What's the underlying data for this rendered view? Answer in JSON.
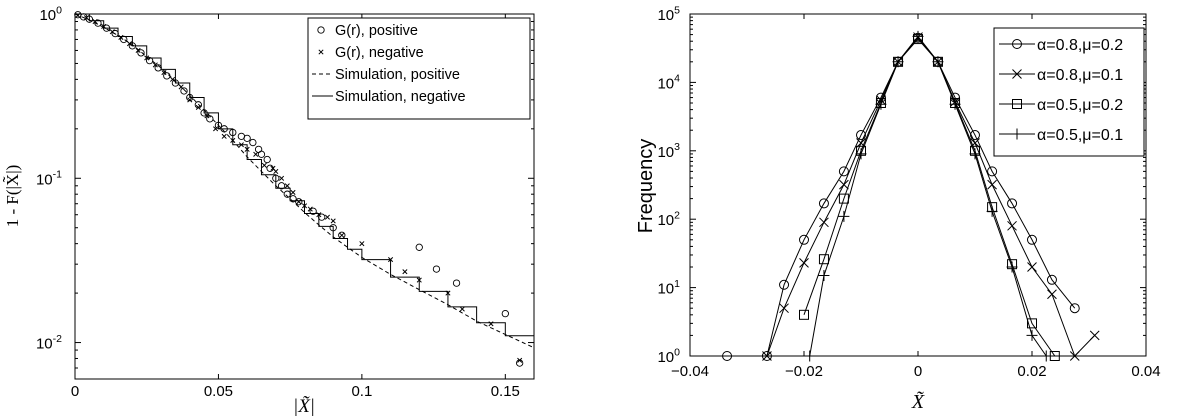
{
  "chart_data": [
    {
      "type": "scatter",
      "xlabel": "|X̃|",
      "ylabel": "1 - F(|X̃|)",
      "xlim": [
        0,
        0.16
      ],
      "ylim": [
        0.006,
        1
      ],
      "yscale": "log",
      "grid": false,
      "legend_position": "top-right",
      "xticks": [
        "0",
        "0.05",
        "0.1",
        "0.15"
      ],
      "yticks": [
        {
          "value": 1,
          "label": "10",
          "exp": "0"
        },
        {
          "value": 0.1,
          "label": "10",
          "exp": "-1"
        },
        {
          "value": 0.01,
          "label": "10",
          "exp": "-2"
        }
      ],
      "series": [
        {
          "name": "G(r), positive",
          "marker": "circle",
          "style": "markers",
          "points": [
            [
              0.001,
              0.99
            ],
            [
              0.003,
              0.96
            ],
            [
              0.005,
              0.93
            ],
            [
              0.008,
              0.88
            ],
            [
              0.011,
              0.82
            ],
            [
              0.014,
              0.76
            ],
            [
              0.017,
              0.7
            ],
            [
              0.02,
              0.64
            ],
            [
              0.023,
              0.58
            ],
            [
              0.026,
              0.52
            ],
            [
              0.029,
              0.47
            ],
            [
              0.032,
              0.42
            ],
            [
              0.035,
              0.38
            ],
            [
              0.038,
              0.34
            ],
            [
              0.04,
              0.31
            ],
            [
              0.043,
              0.28
            ],
            [
              0.045,
              0.25
            ],
            [
              0.047,
              0.23
            ],
            [
              0.05,
              0.21
            ],
            [
              0.052,
              0.2
            ],
            [
              0.055,
              0.19
            ],
            [
              0.058,
              0.18
            ],
            [
              0.06,
              0.175
            ],
            [
              0.062,
              0.165
            ],
            [
              0.064,
              0.15
            ],
            [
              0.065,
              0.14
            ],
            [
              0.067,
              0.13
            ],
            [
              0.068,
              0.115
            ],
            [
              0.07,
              0.1
            ],
            [
              0.072,
              0.09
            ],
            [
              0.074,
              0.08
            ],
            [
              0.076,
              0.075
            ],
            [
              0.078,
              0.072
            ],
            [
              0.083,
              0.063
            ],
            [
              0.086,
              0.058
            ],
            [
              0.09,
              0.05
            ],
            [
              0.093,
              0.045
            ],
            [
              0.12,
              0.038
            ],
            [
              0.126,
              0.028
            ],
            [
              0.133,
              0.023
            ],
            [
              0.15,
              0.015
            ],
            [
              0.155,
              0.0075
            ]
          ]
        },
        {
          "name": "G(r), negative",
          "marker": "x",
          "style": "markers",
          "points": [
            [
              0.001,
              0.98
            ],
            [
              0.004,
              0.95
            ],
            [
              0.007,
              0.9
            ],
            [
              0.01,
              0.84
            ],
            [
              0.013,
              0.78
            ],
            [
              0.016,
              0.72
            ],
            [
              0.019,
              0.66
            ],
            [
              0.022,
              0.6
            ],
            [
              0.025,
              0.54
            ],
            [
              0.028,
              0.49
            ],
            [
              0.031,
              0.44
            ],
            [
              0.034,
              0.4
            ],
            [
              0.037,
              0.36
            ],
            [
              0.04,
              0.3
            ],
            [
              0.043,
              0.27
            ],
            [
              0.046,
              0.24
            ],
            [
              0.049,
              0.2
            ],
            [
              0.052,
              0.18
            ],
            [
              0.055,
              0.17
            ],
            [
              0.058,
              0.16
            ],
            [
              0.06,
              0.15
            ],
            [
              0.063,
              0.14
            ],
            [
              0.066,
              0.12
            ],
            [
              0.069,
              0.115
            ],
            [
              0.07,
              0.11
            ],
            [
              0.072,
              0.1
            ],
            [
              0.074,
              0.09
            ],
            [
              0.076,
              0.082
            ],
            [
              0.078,
              0.072
            ],
            [
              0.08,
              0.068
            ],
            [
              0.082,
              0.065
            ],
            [
              0.085,
              0.06
            ],
            [
              0.088,
              0.058
            ],
            [
              0.09,
              0.055
            ],
            [
              0.093,
              0.045
            ],
            [
              0.1,
              0.04
            ],
            [
              0.11,
              0.032
            ],
            [
              0.115,
              0.027
            ],
            [
              0.12,
              0.024
            ],
            [
              0.13,
              0.02
            ],
            [
              0.135,
              0.016
            ],
            [
              0.145,
              0.013
            ],
            [
              0.155,
              0.0078
            ]
          ]
        },
        {
          "name": "Simulation, positive",
          "style": "dashed",
          "points": [
            [
              0,
              1
            ],
            [
              0.005,
              0.92
            ],
            [
              0.01,
              0.83
            ],
            [
              0.015,
              0.74
            ],
            [
              0.02,
              0.65
            ],
            [
              0.025,
              0.55
            ],
            [
              0.03,
              0.47
            ],
            [
              0.035,
              0.39
            ],
            [
              0.04,
              0.32
            ],
            [
              0.045,
              0.26
            ],
            [
              0.05,
              0.21
            ],
            [
              0.055,
              0.17
            ],
            [
              0.06,
              0.135
            ],
            [
              0.065,
              0.11
            ],
            [
              0.07,
              0.09
            ],
            [
              0.075,
              0.075
            ],
            [
              0.08,
              0.062
            ],
            [
              0.085,
              0.052
            ],
            [
              0.09,
              0.044
            ],
            [
              0.095,
              0.038
            ],
            [
              0.1,
              0.033
            ],
            [
              0.11,
              0.026
            ],
            [
              0.12,
              0.021
            ],
            [
              0.13,
              0.017
            ],
            [
              0.14,
              0.0135
            ],
            [
              0.15,
              0.0112
            ],
            [
              0.16,
              0.0093
            ]
          ]
        },
        {
          "name": "Simulation, negative",
          "style": "solid-step",
          "points": [
            [
              0,
              1
            ],
            [
              0.005,
              0.91
            ],
            [
              0.01,
              0.82
            ],
            [
              0.015,
              0.73
            ],
            [
              0.02,
              0.64
            ],
            [
              0.025,
              0.54
            ],
            [
              0.03,
              0.46
            ],
            [
              0.035,
              0.38
            ],
            [
              0.04,
              0.31
            ],
            [
              0.045,
              0.25
            ],
            [
              0.05,
              0.2
            ],
            [
              0.055,
              0.16
            ],
            [
              0.06,
              0.13
            ],
            [
              0.065,
              0.105
            ],
            [
              0.07,
              0.087
            ],
            [
              0.075,
              0.073
            ],
            [
              0.08,
              0.061
            ],
            [
              0.085,
              0.051
            ],
            [
              0.09,
              0.043
            ],
            [
              0.095,
              0.037
            ],
            [
              0.1,
              0.032
            ],
            [
              0.11,
              0.025
            ],
            [
              0.12,
              0.0205
            ],
            [
              0.13,
              0.0165
            ],
            [
              0.14,
              0.0132
            ],
            [
              0.15,
              0.011
            ],
            [
              0.16,
              0.0092
            ]
          ]
        }
      ]
    },
    {
      "type": "line",
      "xlabel": "X̃",
      "ylabel": "Frequency",
      "xlim": [
        -0.04,
        0.04
      ],
      "ylim": [
        1,
        100000
      ],
      "yscale": "log",
      "grid": false,
      "legend_position": "top-right",
      "xticks": [
        "−0.04",
        "−0.02",
        "0",
        "0.02",
        "0.04"
      ],
      "yticks": [
        {
          "value": 1,
          "label": "10",
          "exp": "0"
        },
        {
          "value": 10,
          "label": "10",
          "exp": "1"
        },
        {
          "value": 100,
          "label": "10",
          "exp": "2"
        },
        {
          "value": 1000,
          "label": "10",
          "exp": "3"
        },
        {
          "value": 10000,
          "label": "10",
          "exp": "4"
        },
        {
          "value": 100000,
          "label": "10",
          "exp": "5"
        }
      ],
      "series": [
        {
          "name": "α=0.8,μ=0.2",
          "marker": "circle",
          "points": [
            [
              -0.0335,
              1
            ],
            [
              -0.0265,
              1
            ],
            [
              -0.0235,
              11
            ],
            [
              -0.02,
              50
            ],
            [
              -0.0165,
              170
            ],
            [
              -0.013,
              500
            ],
            [
              -0.01,
              1700
            ],
            [
              -0.0065,
              6000
            ],
            [
              -0.0035,
              20000
            ],
            [
              0,
              45000
            ],
            [
              0.0035,
              20000
            ],
            [
              0.0065,
              6000
            ],
            [
              0.01,
              1700
            ],
            [
              0.013,
              500
            ],
            [
              0.0165,
              170
            ],
            [
              0.02,
              50
            ],
            [
              0.0235,
              13
            ],
            [
              0.0275,
              5
            ]
          ]
        },
        {
          "name": "α=0.8,μ=0.1",
          "marker": "x",
          "points": [
            [
              -0.0265,
              1
            ],
            [
              -0.0235,
              5
            ],
            [
              -0.02,
              23
            ],
            [
              -0.0165,
              90
            ],
            [
              -0.013,
              320
            ],
            [
              -0.01,
              1300
            ],
            [
              -0.0065,
              5500
            ],
            [
              -0.0035,
              20000
            ],
            [
              0,
              46000
            ],
            [
              0.0035,
              20000
            ],
            [
              0.0065,
              5200
            ],
            [
              0.01,
              1300
            ],
            [
              0.013,
              320
            ],
            [
              0.0165,
              80
            ],
            [
              0.02,
              20
            ],
            [
              0.0235,
              8
            ],
            [
              0.0275,
              1
            ],
            [
              0.031,
              2
            ]
          ]
        },
        {
          "name": "α=0.5,μ=0.2",
          "marker": "square",
          "points": [
            [
              -0.02,
              4
            ],
            [
              -0.0165,
              26
            ],
            [
              -0.013,
              200
            ],
            [
              -0.01,
              1000
            ],
            [
              -0.0065,
              5000
            ],
            [
              -0.0035,
              20000
            ],
            [
              0,
              43000
            ],
            [
              0.0035,
              20000
            ],
            [
              0.0065,
              5000
            ],
            [
              0.01,
              1000
            ],
            [
              0.013,
              150
            ],
            [
              0.0165,
              22
            ],
            [
              0.02,
              3
            ],
            [
              0.024,
              1
            ]
          ]
        },
        {
          "name": "α=0.5,μ=0.1",
          "marker": "plus",
          "points": [
            [
              -0.019,
              1
            ],
            [
              -0.0165,
              15
            ],
            [
              -0.013,
              110
            ],
            [
              -0.01,
              900
            ],
            [
              -0.0065,
              4800
            ],
            [
              -0.0035,
              20000
            ],
            [
              0,
              47000
            ],
            [
              0.0035,
              20000
            ],
            [
              0.0065,
              4800
            ],
            [
              0.01,
              900
            ],
            [
              0.013,
              130
            ],
            [
              0.0165,
              20
            ],
            [
              0.02,
              2
            ],
            [
              0.0225,
              1
            ]
          ]
        }
      ]
    }
  ]
}
